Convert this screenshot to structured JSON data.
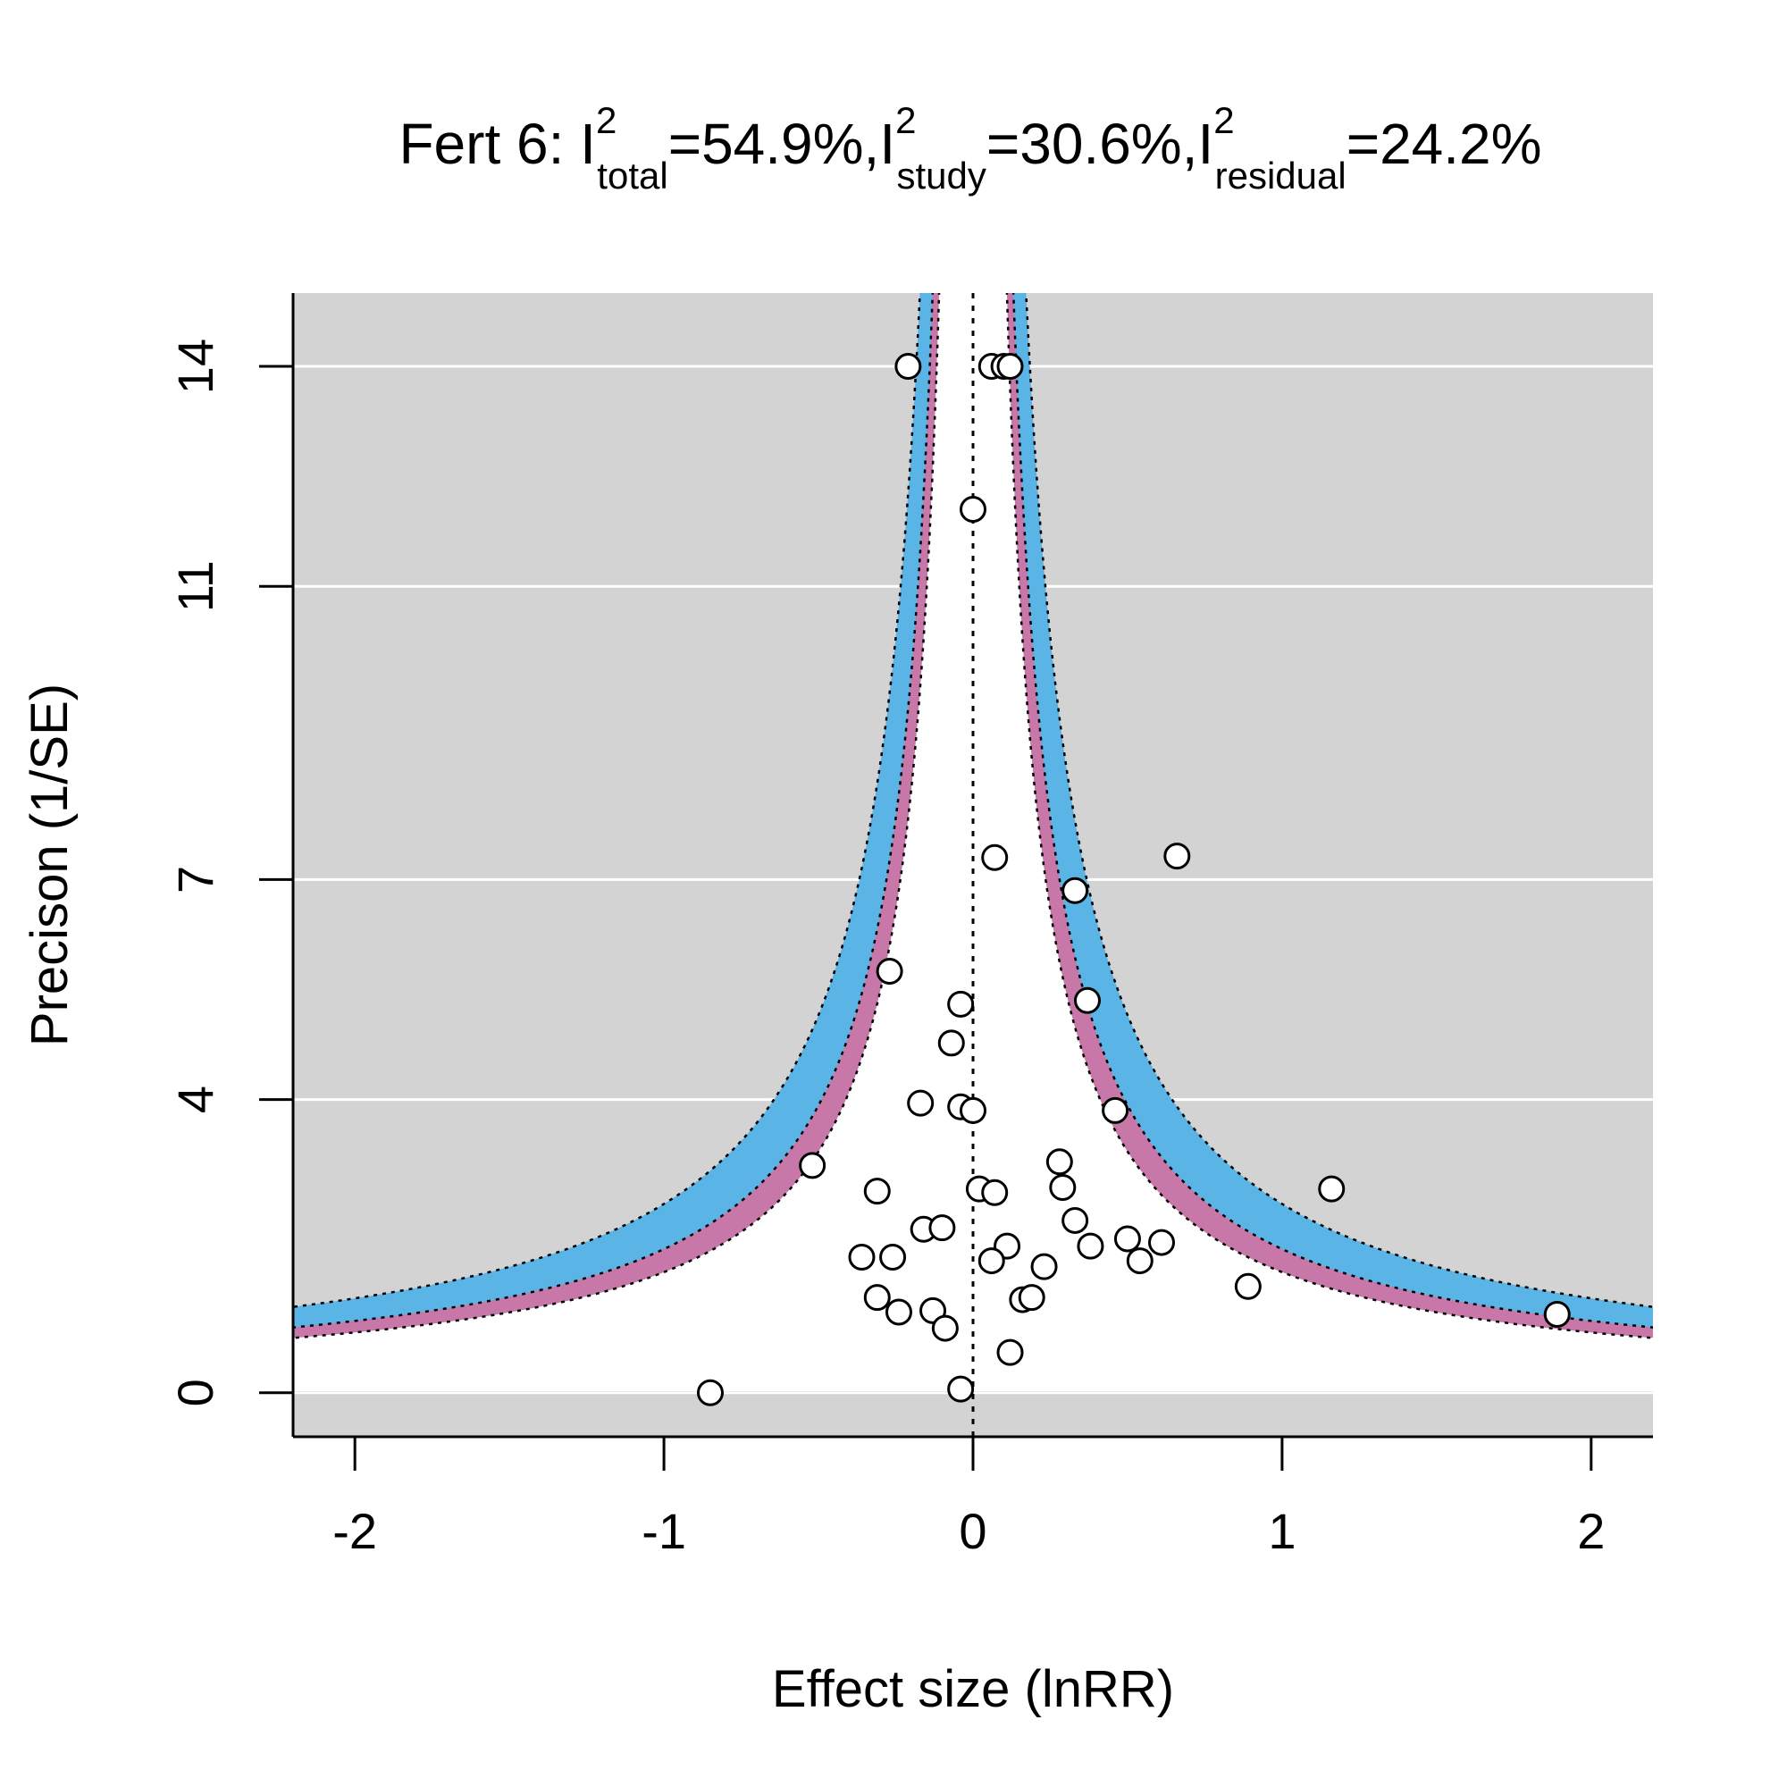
{
  "chart_data": {
    "type": "scatter",
    "title": {
      "prefix": "Fert 6: ",
      "parts": [
        {
          "base": "I",
          "sup": "2",
          "sub": "total",
          "value": "=54.9%"
        },
        {
          "base": "I",
          "sup": "2",
          "sub": "study",
          "value": "=30.6%"
        },
        {
          "base": "I",
          "sup": "2",
          "sub": "residual",
          "value": "=24.2%"
        }
      ],
      "separator": ","
    },
    "xlabel": "Effect size (lnRR)",
    "ylabel": "Precison (1/SE)",
    "xlim": [
      -2.2,
      2.2
    ],
    "ylim": [
      -0.6,
      15.0
    ],
    "x_ticks": [
      -2,
      -1,
      0,
      1,
      2
    ],
    "x_tick_labels": [
      "-2",
      "-1",
      "0",
      "1",
      "2"
    ],
    "y_ticks": [
      0,
      4,
      7,
      11,
      14
    ],
    "y_tick_labels": [
      "0",
      "4",
      "7",
      "11",
      "14"
    ],
    "grid": "horizontal",
    "reference_line_x": 0,
    "contours": {
      "z_values": [
        1.645,
        1.96,
        2.576
      ],
      "colors": [
        "#ffffff",
        "#c878a8",
        "#5ab4e6"
      ],
      "outer_color": "#d3d3d3"
    },
    "points": [
      {
        "x": -0.21,
        "y": 14.0
      },
      {
        "x": 0.06,
        "y": 14.0
      },
      {
        "x": 0.1,
        "y": 14.0
      },
      {
        "x": 0.12,
        "y": 14.0
      },
      {
        "x": 0.0,
        "y": 12.05
      },
      {
        "x": 0.07,
        "y": 7.3
      },
      {
        "x": 0.66,
        "y": 7.32
      },
      {
        "x": 0.33,
        "y": 6.85
      },
      {
        "x": -0.27,
        "y": 5.75
      },
      {
        "x": 0.37,
        "y": 5.35
      },
      {
        "x": -0.04,
        "y": 5.3
      },
      {
        "x": -0.07,
        "y": 4.77
      },
      {
        "x": -0.17,
        "y": 3.95
      },
      {
        "x": -0.04,
        "y": 3.9
      },
      {
        "x": 0.0,
        "y": 3.85
      },
      {
        "x": 0.46,
        "y": 3.85
      },
      {
        "x": -0.52,
        "y": 3.1
      },
      {
        "x": 0.28,
        "y": 3.15
      },
      {
        "x": -0.31,
        "y": 2.75
      },
      {
        "x": 0.02,
        "y": 2.78
      },
      {
        "x": 0.07,
        "y": 2.73
      },
      {
        "x": 0.29,
        "y": 2.8
      },
      {
        "x": 1.16,
        "y": 2.78
      },
      {
        "x": 0.33,
        "y": 2.35
      },
      {
        "x": -0.16,
        "y": 2.23
      },
      {
        "x": -0.1,
        "y": 2.25
      },
      {
        "x": 0.5,
        "y": 2.1
      },
      {
        "x": 0.61,
        "y": 2.05
      },
      {
        "x": 0.11,
        "y": 2.0
      },
      {
        "x": 0.38,
        "y": 2.0
      },
      {
        "x": -0.36,
        "y": 1.85
      },
      {
        "x": -0.26,
        "y": 1.85
      },
      {
        "x": 0.06,
        "y": 1.8
      },
      {
        "x": 0.23,
        "y": 1.72
      },
      {
        "x": 0.54,
        "y": 1.8
      },
      {
        "x": 0.89,
        "y": 1.45
      },
      {
        "x": -0.31,
        "y": 1.3
      },
      {
        "x": 0.16,
        "y": 1.27
      },
      {
        "x": 0.19,
        "y": 1.3
      },
      {
        "x": -0.24,
        "y": 1.1
      },
      {
        "x": -0.13,
        "y": 1.12
      },
      {
        "x": 1.89,
        "y": 1.07
      },
      {
        "x": -0.09,
        "y": 0.88
      },
      {
        "x": 0.12,
        "y": 0.55
      },
      {
        "x": -0.85,
        "y": 0.0
      },
      {
        "x": -0.04,
        "y": 0.05
      }
    ]
  }
}
